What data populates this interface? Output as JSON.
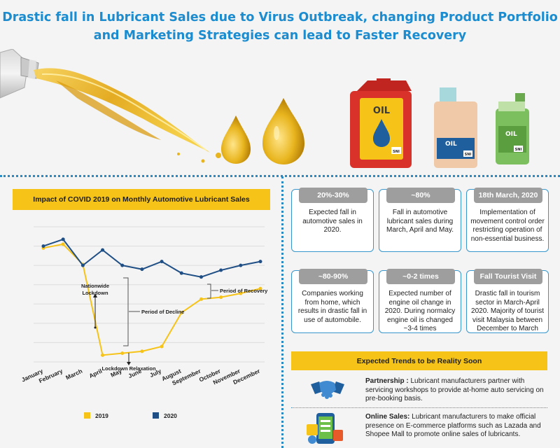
{
  "header": {
    "title_line1": "Drastic fall in Lubricant Sales due to Virus Outbreak, changing Product Portfolio",
    "title_line2": "and Marketing Strategies can lead to Faster Recovery"
  },
  "hero": {
    "can1_label": "OIL",
    "can1_badge": "SNI",
    "can2_label": "OIL",
    "can2_badge": "SNI",
    "can3_label": "OIL",
    "can3_badge": "SNI",
    "colors": {
      "red_can": "#d8322b",
      "beige_can": "#efc9a8",
      "green_can": "#7bbf5e",
      "oil": "#e8b51e"
    }
  },
  "chart_data": {
    "type": "line",
    "title": "Impact of COVID 2019 on Monthly Automotive Lubricant Sales",
    "categories": [
      "January",
      "February",
      "March",
      "April",
      "May",
      "June",
      "July",
      "August",
      "September",
      "October",
      "November",
      "December"
    ],
    "series": [
      {
        "name": "2019",
        "color": "#f6c318",
        "values": [
          5.9,
          6.1,
          5.05,
          0.35,
          0.45,
          0.55,
          0.8,
          2.55,
          3.25,
          3.35,
          3.55,
          3.8
        ]
      },
      {
        "name": "2020",
        "color": "#1f4f85",
        "values": [
          6.0,
          6.35,
          5.0,
          5.8,
          5.0,
          4.8,
          5.2,
          4.6,
          4.4,
          4.75,
          5.0,
          5.2
        ]
      }
    ],
    "ylim": [
      0,
      7
    ],
    "grid": true,
    "legend": "bottom",
    "annotations": {
      "nationwide_lockdown": "Nationwide\nLockdown",
      "period_of_decline": "Period of Decline",
      "period_of_recovery": "Period of Recovery",
      "lockdown_relaxation": "Lockdown Relaxation"
    }
  },
  "cards": [
    {
      "header": "20%-30%",
      "text": "Expected fall in automotive sales in 2020."
    },
    {
      "header": "~80%",
      "text": "Fall in automotive lubricant sales during March, April and May."
    },
    {
      "header": "18th March, 2020",
      "text": "Implementation of movement control order restricting operation of non-essential business."
    },
    {
      "header": "~80-90%",
      "text": "Companies working from home, which results in drastic fall in use of automobile."
    },
    {
      "header": "~0-2 times",
      "text": "Expected number of engine oil change in 2020. During normalcy engine oil is changed ~3-4 times"
    },
    {
      "header": "Fall Tourist Visit",
      "text": "Drastic fall in tourism sector in March-April 2020. Majority of tourist visit Malaysia between December to March"
    }
  ],
  "trends": {
    "header": "Expected Trends to be Reality Soon",
    "items": [
      {
        "title": "Partnership :",
        "text": " Lubricant manufacturers partner with servicing workshops to provide at-home auto servicing on pre-booking basis.",
        "icon": "handshake-icon"
      },
      {
        "title": "Online Sales:",
        "text": " Lubricant manufacturers to make official presence on E-commerce platforms such as Lazada and Shopee Mall to promote online sales of lubricants.",
        "icon": "phone-shop-icon"
      }
    ]
  }
}
